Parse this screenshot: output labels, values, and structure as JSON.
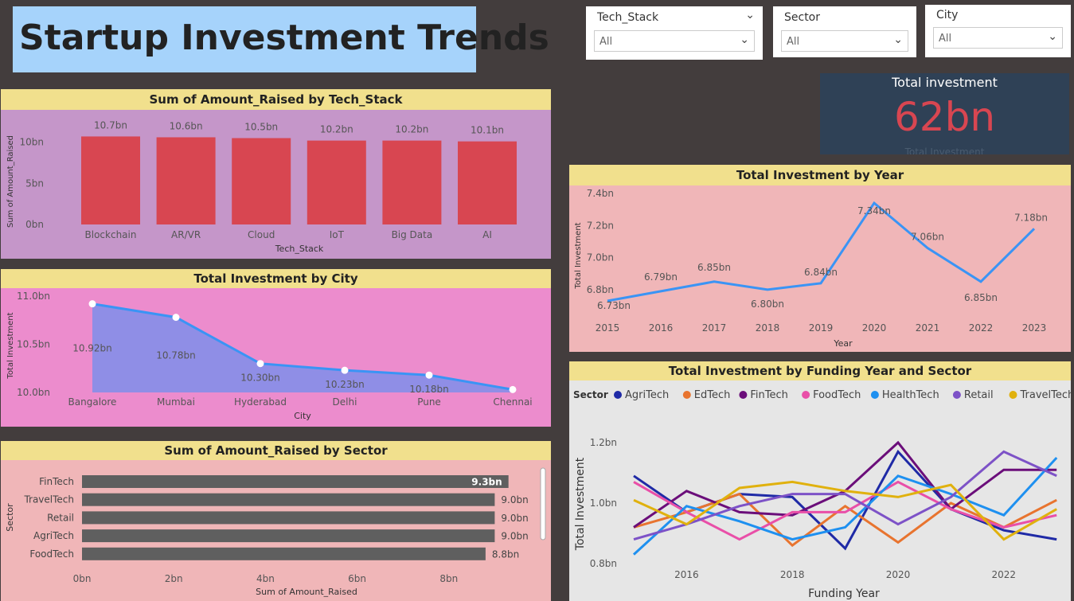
{
  "title": "Startup Investment Trends",
  "slicers": [
    {
      "label": "Tech_Stack",
      "value": "All"
    },
    {
      "label": "Sector",
      "value": "All"
    },
    {
      "label": "City",
      "value": "All"
    }
  ],
  "kpi": {
    "title": "Total investment",
    "value": "62bn",
    "subtitle": "Total Investment"
  },
  "colors": {
    "bar": "#d84651",
    "line": "#3a94f5",
    "area": "#8f8ee6",
    "kpi_bg": "#2f4156",
    "title_bar": "#f1e08d",
    "sector_bar": "#5f5f5f"
  },
  "chart_data": [
    {
      "type": "bar",
      "title": "Sum of Amount_Raised by Tech_Stack",
      "xlabel": "Tech_Stack",
      "ylabel": "Sum of Amount_Raised",
      "categories": [
        "Blockchain",
        "AR/VR",
        "Cloud",
        "IoT",
        "Big Data",
        "AI"
      ],
      "values": [
        10.7,
        10.6,
        10.5,
        10.2,
        10.2,
        10.1
      ],
      "data_labels": [
        "10.7bn",
        "10.6bn",
        "10.5bn",
        "10.2bn",
        "10.2bn",
        "10.1bn"
      ],
      "yticks": [
        "0bn",
        "5bn",
        "10bn"
      ],
      "ylim": [
        0,
        12
      ]
    },
    {
      "type": "area",
      "title": "Total Investment by City",
      "xlabel": "City",
      "ylabel": "Total Investment",
      "categories": [
        "Bangalore",
        "Mumbai",
        "Hyderabad",
        "Delhi",
        "Pune",
        "Chennai"
      ],
      "values": [
        10.92,
        10.78,
        10.3,
        10.23,
        10.18,
        10.03
      ],
      "data_labels": [
        "10.92bn",
        "10.78bn",
        "10.30bn",
        "10.23bn",
        "10.18bn",
        ""
      ],
      "yticks": [
        "10.0bn",
        "10.5bn",
        "11.0bn"
      ],
      "ylim": [
        10.0,
        11.0
      ]
    },
    {
      "type": "bar",
      "title": "Sum of Amount_Raised by Sector",
      "xlabel": "Sum of Amount_Raised",
      "ylabel": "Sector",
      "categories": [
        "FinTech",
        "TravelTech",
        "Retail",
        "AgriTech",
        "FoodTech"
      ],
      "values": [
        9.3,
        9.0,
        9.0,
        9.0,
        8.8
      ],
      "data_labels": [
        "9.3bn",
        "9.0bn",
        "9.0bn",
        "9.0bn",
        "8.8bn"
      ],
      "xticks": [
        "0bn",
        "2bn",
        "4bn",
        "6bn",
        "8bn"
      ],
      "xlim": [
        0,
        10
      ]
    },
    {
      "type": "line",
      "title": "Total Investment by Year",
      "xlabel": "Year",
      "ylabel": "Total Investment",
      "categories": [
        "2015",
        "2016",
        "2017",
        "2018",
        "2019",
        "2020",
        "2021",
        "2022",
        "2023"
      ],
      "values": [
        6.73,
        6.79,
        6.85,
        6.8,
        6.84,
        7.34,
        7.06,
        6.85,
        7.18
      ],
      "data_labels": [
        "6.73bn",
        "6.79bn",
        "6.85bn",
        "6.80bn",
        "6.84bn",
        "7.34bn",
        "7.06bn",
        "6.85bn",
        "7.18bn"
      ],
      "yticks": [
        "6.8bn",
        "7.0bn",
        "7.2bn",
        "7.4bn"
      ],
      "ylim": [
        6.7,
        7.45
      ]
    },
    {
      "type": "line",
      "title": "Total Investment by Funding Year and Sector",
      "xlabel": "Funding Year",
      "ylabel": "Total Investment",
      "legend_title": "Sector",
      "x": [
        2015,
        2016,
        2017,
        2018,
        2019,
        2020,
        2021,
        2022,
        2023
      ],
      "xticks": [
        "2016",
        "2018",
        "2020",
        "2022"
      ],
      "yticks": [
        "0.8bn",
        "1.0bn",
        "1.2bn"
      ],
      "ylim": [
        0.8,
        1.25
      ],
      "series": [
        {
          "name": "AgriTech",
          "color": "#1f2aa6",
          "values": [
            1.09,
            0.97,
            1.03,
            1.02,
            0.85,
            1.17,
            0.98,
            0.91,
            0.88
          ]
        },
        {
          "name": "EdTech",
          "color": "#e8742f",
          "values": [
            0.92,
            0.97,
            1.03,
            0.86,
            0.99,
            0.87,
            1.0,
            0.92,
            1.01
          ]
        },
        {
          "name": "FinTech",
          "color": "#6b0e7a",
          "values": [
            0.92,
            1.04,
            0.97,
            0.96,
            1.04,
            1.2,
            0.98,
            1.11,
            1.11
          ]
        },
        {
          "name": "FoodTech",
          "color": "#e94fa8",
          "values": [
            1.07,
            0.97,
            0.88,
            0.97,
            0.97,
            1.07,
            0.98,
            0.92,
            0.96
          ]
        },
        {
          "name": "HealthTech",
          "color": "#1e90f0",
          "values": [
            0.83,
            0.99,
            0.94,
            0.88,
            0.92,
            1.09,
            1.03,
            0.96,
            1.15
          ]
        },
        {
          "name": "Retail",
          "color": "#7d52c7",
          "values": [
            0.88,
            0.93,
            0.99,
            1.03,
            1.03,
            0.93,
            1.02,
            1.17,
            1.09
          ]
        },
        {
          "name": "TravelTech",
          "color": "#e0b10e",
          "values": [
            1.01,
            0.93,
            1.05,
            1.07,
            1.04,
            1.02,
            1.06,
            0.88,
            0.98
          ]
        }
      ]
    }
  ]
}
